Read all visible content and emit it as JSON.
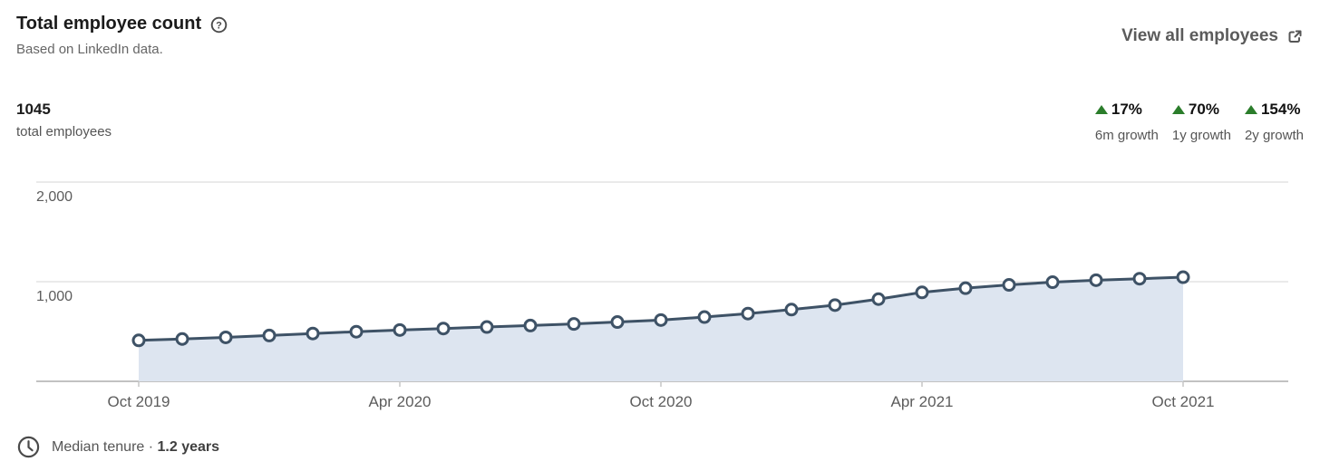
{
  "header": {
    "title": "Total employee count",
    "help_icon": "question-mark-circle",
    "subtitle": "Based on LinkedIn data.",
    "view_all": {
      "label": "View all employees",
      "icon": "external-link"
    }
  },
  "stats": {
    "total": {
      "value": "1045",
      "label": "total employees"
    },
    "growth": [
      {
        "value": "17%",
        "label": "6m growth",
        "direction": "up"
      },
      {
        "value": "70%",
        "label": "1y growth",
        "direction": "up"
      },
      {
        "value": "154%",
        "label": "2y growth",
        "direction": "up"
      }
    ],
    "positive_color": "#2b7d2b"
  },
  "chart_data": {
    "type": "area",
    "title": "Total employee count",
    "x": [
      "Oct 2019",
      "Nov 2019",
      "Dec 2019",
      "Jan 2020",
      "Feb 2020",
      "Mar 2020",
      "Apr 2020",
      "May 2020",
      "Jun 2020",
      "Jul 2020",
      "Aug 2020",
      "Sep 2020",
      "Oct 2020",
      "Nov 2020",
      "Dec 2020",
      "Jan 2021",
      "Feb 2021",
      "Mar 2021",
      "Apr 2021",
      "May 2021",
      "Jun 2021",
      "Jul 2021",
      "Aug 2021",
      "Sep 2021",
      "Oct 2021"
    ],
    "series": [
      {
        "name": "Total employees",
        "values": [
          411,
          425,
          441,
          460,
          480,
          498,
          515,
          530,
          545,
          560,
          576,
          595,
          615,
          645,
          680,
          720,
          765,
          825,
          893,
          935,
          968,
          995,
          1015,
          1030,
          1045
        ]
      }
    ],
    "x_tick_labels": [
      "Oct 2019",
      "Apr 2020",
      "Oct 2020",
      "Apr 2021",
      "Oct 2021"
    ],
    "y_ticks": [
      {
        "value": 2000,
        "label": "2,000"
      },
      {
        "value": 1000,
        "label": "1,000"
      }
    ],
    "ylim": [
      0,
      2100
    ],
    "grid": "horizontal-only",
    "legend": "none",
    "colors": {
      "line": "#3e5266",
      "area": "#dde5f0",
      "marker_fill": "#ffffff",
      "grid": "#e3e3e3",
      "axis": "#adadad",
      "tick": "#c6c6c6",
      "axis_text": "#5c5c5c"
    }
  },
  "footer": {
    "icon": "clock",
    "label": "Median tenure ·",
    "value": "1.2 years"
  }
}
